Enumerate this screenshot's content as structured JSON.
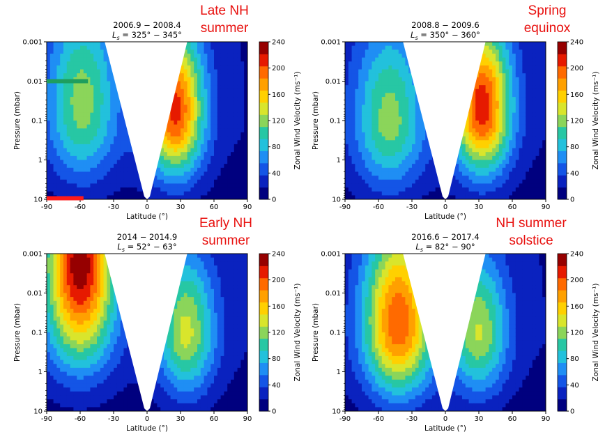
{
  "chart_data": [
    {
      "type": "heatmap",
      "title_line1": "2006.9 − 2008.4",
      "title_line2": "L",
      "title_sub": "s",
      "title_tail": " = 325° − 345°",
      "annotation": [
        "Late NH",
        "summer"
      ],
      "xlabel": "Latitude (°)",
      "ylabel": "Pressure (mbar)",
      "colorbar_label": "Zonal Wind Velocity (ms⁻¹)",
      "xlim": [
        -90,
        90
      ],
      "ylim": [
        10,
        0.001
      ],
      "y_scale": "log",
      "xticks": [
        -90,
        -60,
        -30,
        0,
        30,
        60,
        90
      ],
      "yticks": [
        "0.001",
        "0.01",
        "0.1",
        "1",
        "10"
      ],
      "colorbar_ticks": [
        0,
        40,
        80,
        120,
        160,
        200,
        240
      ],
      "jets": [
        {
          "name": "southern",
          "lat": -58,
          "pressure": 0.03,
          "peak": 120
        },
        {
          "name": "northern",
          "lat": 25,
          "pressure": 0.05,
          "peak": 210
        }
      ],
      "markers": [
        {
          "color": "#1e9e5e",
          "lat_range": [
            -90,
            -53
          ],
          "pressure": 0.01
        },
        {
          "color": "#ff1a1a",
          "lat_range": [
            -90,
            -57
          ],
          "pressure": 10
        }
      ]
    },
    {
      "type": "heatmap",
      "title_line1": "2008.8 − 2009.6",
      "title_line2": "L",
      "title_sub": "s",
      "title_tail": " = 350° − 360°",
      "annotation": [
        "Spring",
        "equinox"
      ],
      "xlabel": "Latitude (°)",
      "ylabel": "Pressure (mbar)",
      "colorbar_label": "Zonal Wind Velocity (ms⁻¹)",
      "xlim": [
        -90,
        90
      ],
      "ylim": [
        10,
        0.001
      ],
      "y_scale": "log",
      "xticks": [
        -90,
        -60,
        -30,
        0,
        30,
        60,
        90
      ],
      "yticks": [
        "0.001",
        "0.01",
        "0.1",
        "1",
        "10"
      ],
      "colorbar_ticks": [
        0,
        40,
        80,
        120,
        160,
        200,
        240
      ],
      "jets": [
        {
          "name": "southern",
          "lat": -50,
          "pressure": 0.1,
          "peak": 120
        },
        {
          "name": "northern",
          "lat": 33,
          "pressure": 0.04,
          "peak": 215
        }
      ]
    },
    {
      "type": "heatmap",
      "title_line1": "2014 − 2014.9",
      "title_line2": "L",
      "title_sub": "s",
      "title_tail": " = 52° − 63°",
      "annotation": [
        "Early NH",
        "summer"
      ],
      "xlabel": "Latitude (°)",
      "ylabel": "Pressure (mbar)",
      "colorbar_label": "Zonal Wind Velocity (ms⁻¹)",
      "xlim": [
        -90,
        90
      ],
      "ylim": [
        10,
        0.001
      ],
      "y_scale": "log",
      "xticks": [
        -90,
        -60,
        -30,
        0,
        30,
        60,
        90
      ],
      "yticks": [
        "0.001",
        "0.01",
        "0.1",
        "1",
        "10"
      ],
      "colorbar_ticks": [
        0,
        40,
        80,
        120,
        160,
        200,
        240
      ],
      "jets": [
        {
          "name": "southern",
          "lat": -60,
          "pressure": 0.002,
          "peak": 235
        },
        {
          "name": "northern",
          "lat": 35,
          "pressure": 0.1,
          "peak": 135
        }
      ]
    },
    {
      "type": "heatmap",
      "title_line1": "2016.6 − 2017.4",
      "title_line2": "L",
      "title_sub": "s",
      "title_tail": " = 82° − 90°",
      "annotation": [
        "NH summer",
        "solstice"
      ],
      "xlabel": "Latitude (°)",
      "ylabel": "Pressure (mbar)",
      "colorbar_label": "Zonal Wind Velocity (ms⁻¹)",
      "xlim": [
        -90,
        90
      ],
      "ylim": [
        10,
        0.001
      ],
      "y_scale": "log",
      "xticks": [
        -90,
        -60,
        -30,
        0,
        30,
        60,
        90
      ],
      "yticks": [
        "0.001",
        "0.01",
        "0.1",
        "1",
        "10"
      ],
      "colorbar_ticks": [
        0,
        40,
        80,
        120,
        160,
        200,
        240
      ],
      "jets": [
        {
          "name": "southern",
          "lat": -42,
          "pressure": 0.05,
          "peak": 200
        },
        {
          "name": "northern",
          "lat": 30,
          "pressure": 0.1,
          "peak": 130
        }
      ]
    }
  ],
  "colorscale": [
    "#00007f",
    "#0a22bf",
    "#1455e6",
    "#1f8ef4",
    "#22c1dc",
    "#27c7a4",
    "#8bd55a",
    "#d9e52c",
    "#ffd000",
    "#ffa000",
    "#ff6a00",
    "#e61a00",
    "#960000"
  ]
}
